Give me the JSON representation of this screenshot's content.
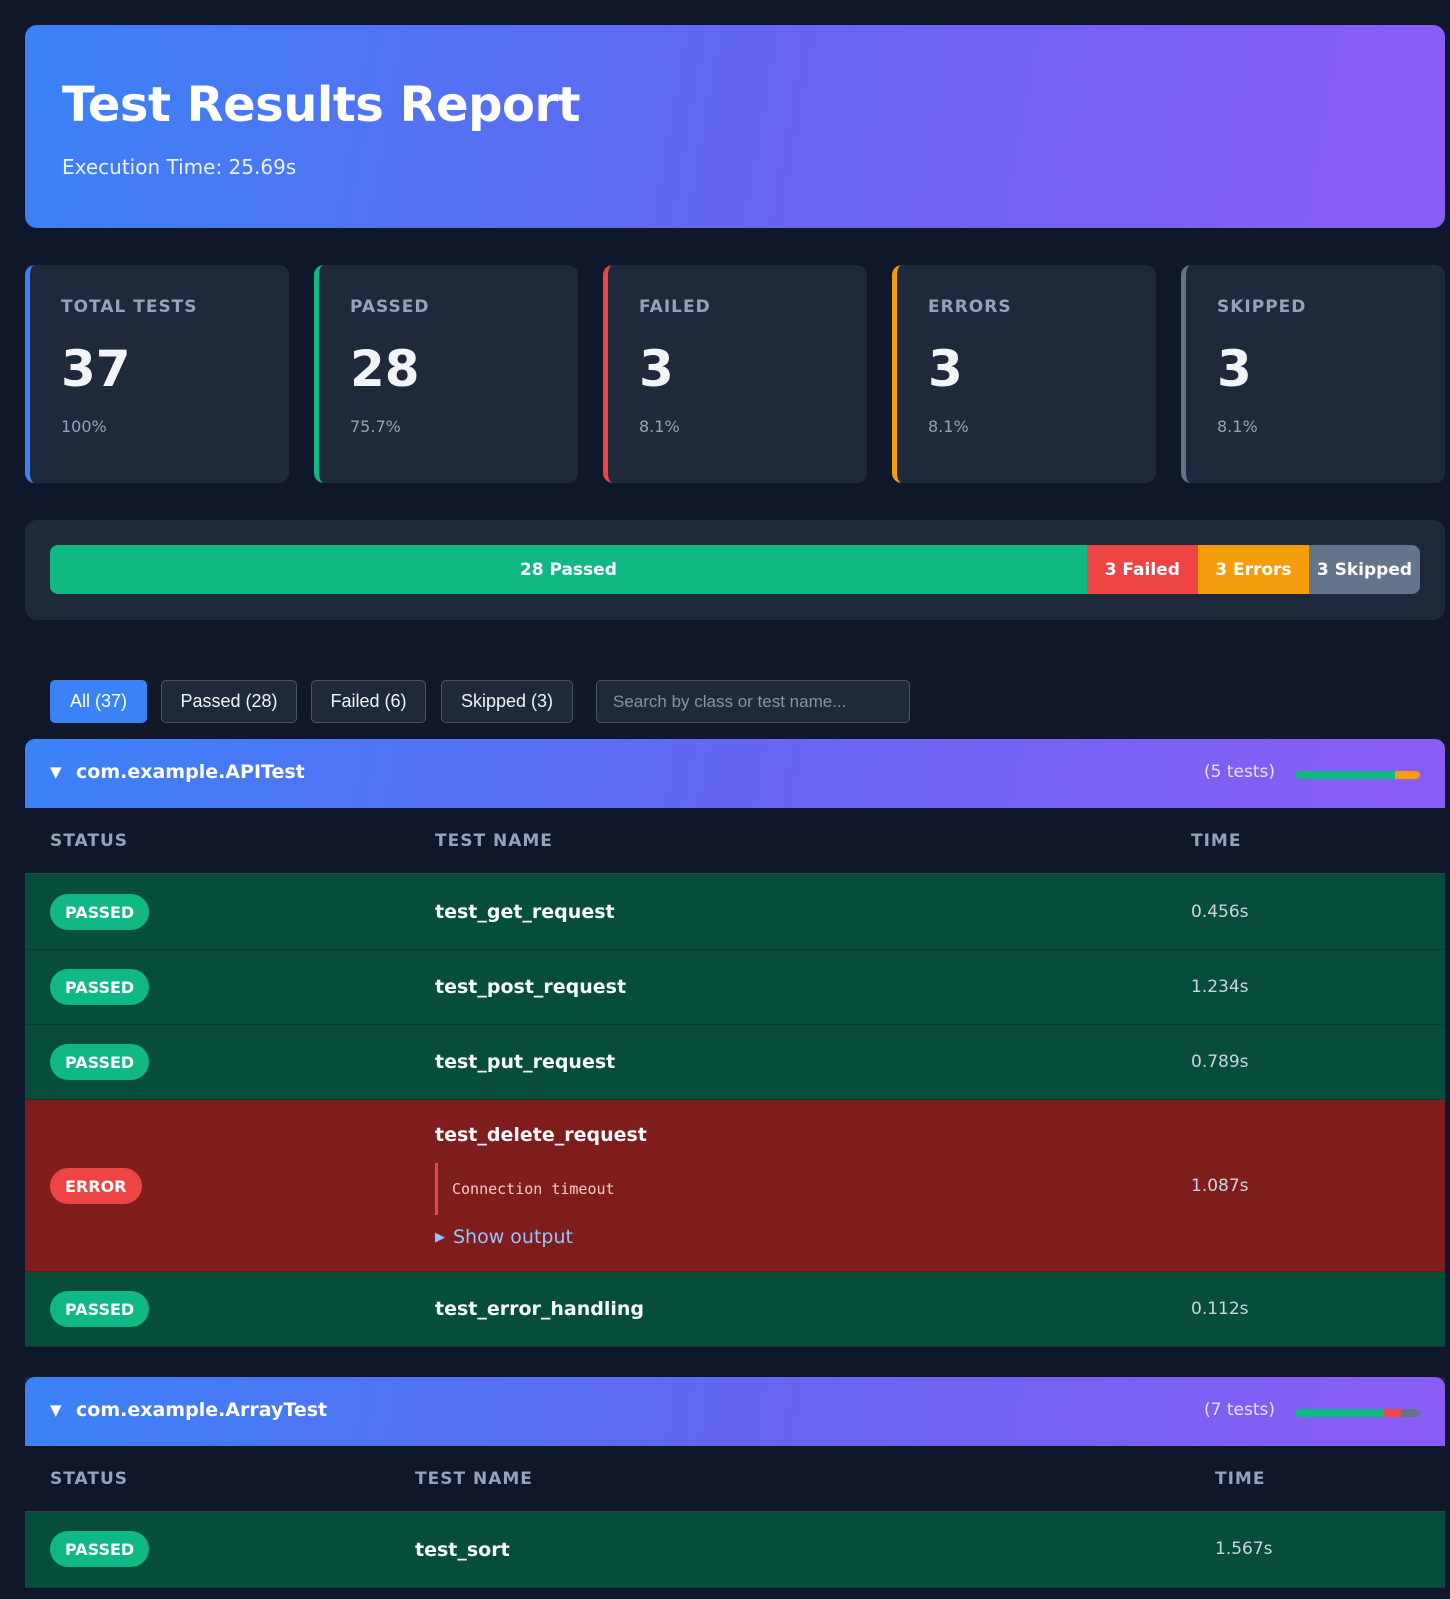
{
  "header": {
    "title": "Test Results Report",
    "execution": "Execution Time: 25.69s"
  },
  "stats": [
    {
      "label": "TOTAL TESTS",
      "value": "37",
      "pct": "100%",
      "color": "#3b82f6"
    },
    {
      "label": "PASSED",
      "value": "28",
      "pct": "75.7%",
      "color": "#10b981"
    },
    {
      "label": "FAILED",
      "value": "3",
      "pct": "8.1%",
      "color": "#ef4444"
    },
    {
      "label": "ERRORS",
      "value": "3",
      "pct": "8.1%",
      "color": "#f59e0b"
    },
    {
      "label": "SKIPPED",
      "value": "3",
      "pct": "8.1%",
      "color": "#64748b"
    }
  ],
  "progress": {
    "segments": [
      {
        "label": "28 Passed",
        "count": 28,
        "color": "#10b981"
      },
      {
        "label": "3 Failed",
        "count": 3,
        "color": "#ef4444"
      },
      {
        "label": "3 Errors",
        "count": 3,
        "color": "#f59e0b"
      },
      {
        "label": "3 Skipped",
        "count": 3,
        "color": "#64748b"
      }
    ]
  },
  "filters": {
    "buttons": [
      "All (37)",
      "Passed (28)",
      "Failed (6)",
      "Skipped (3)"
    ],
    "active_index": 0,
    "search_placeholder": "Search by class or test name...",
    "search_value": ""
  },
  "classes": [
    {
      "name": "com.example.APITest",
      "count_label": "(5 tests)",
      "mini": [
        {
          "count": 4,
          "color": "#10b981"
        },
        {
          "count": 1,
          "color": "#f59e0b"
        }
      ],
      "columns": [
        "STATUS",
        "TEST NAME",
        "TIME"
      ],
      "rows": [
        {
          "status": "PASSED",
          "name": "test_get_request",
          "time": "0.456s"
        },
        {
          "status": "PASSED",
          "name": "test_post_request",
          "time": "1.234s"
        },
        {
          "status": "PASSED",
          "name": "test_put_request",
          "time": "0.789s"
        },
        {
          "status": "ERROR",
          "name": "test_delete_request",
          "time": "1.087s",
          "message": "Connection timeout",
          "output_label": "Show output"
        },
        {
          "status": "PASSED",
          "name": "test_error_handling",
          "time": "0.112s"
        }
      ]
    },
    {
      "name": "com.example.ArrayTest",
      "count_label": "(7 tests)",
      "mini": [
        {
          "count": 5,
          "color": "#10b981"
        },
        {
          "count": 1,
          "color": "#ef4444"
        },
        {
          "count": 1,
          "color": "#64748b"
        }
      ],
      "columns": [
        "STATUS",
        "TEST NAME",
        "TIME"
      ],
      "rows": [
        {
          "status": "PASSED",
          "name": "test_sort",
          "time": "1.567s"
        }
      ]
    }
  ]
}
